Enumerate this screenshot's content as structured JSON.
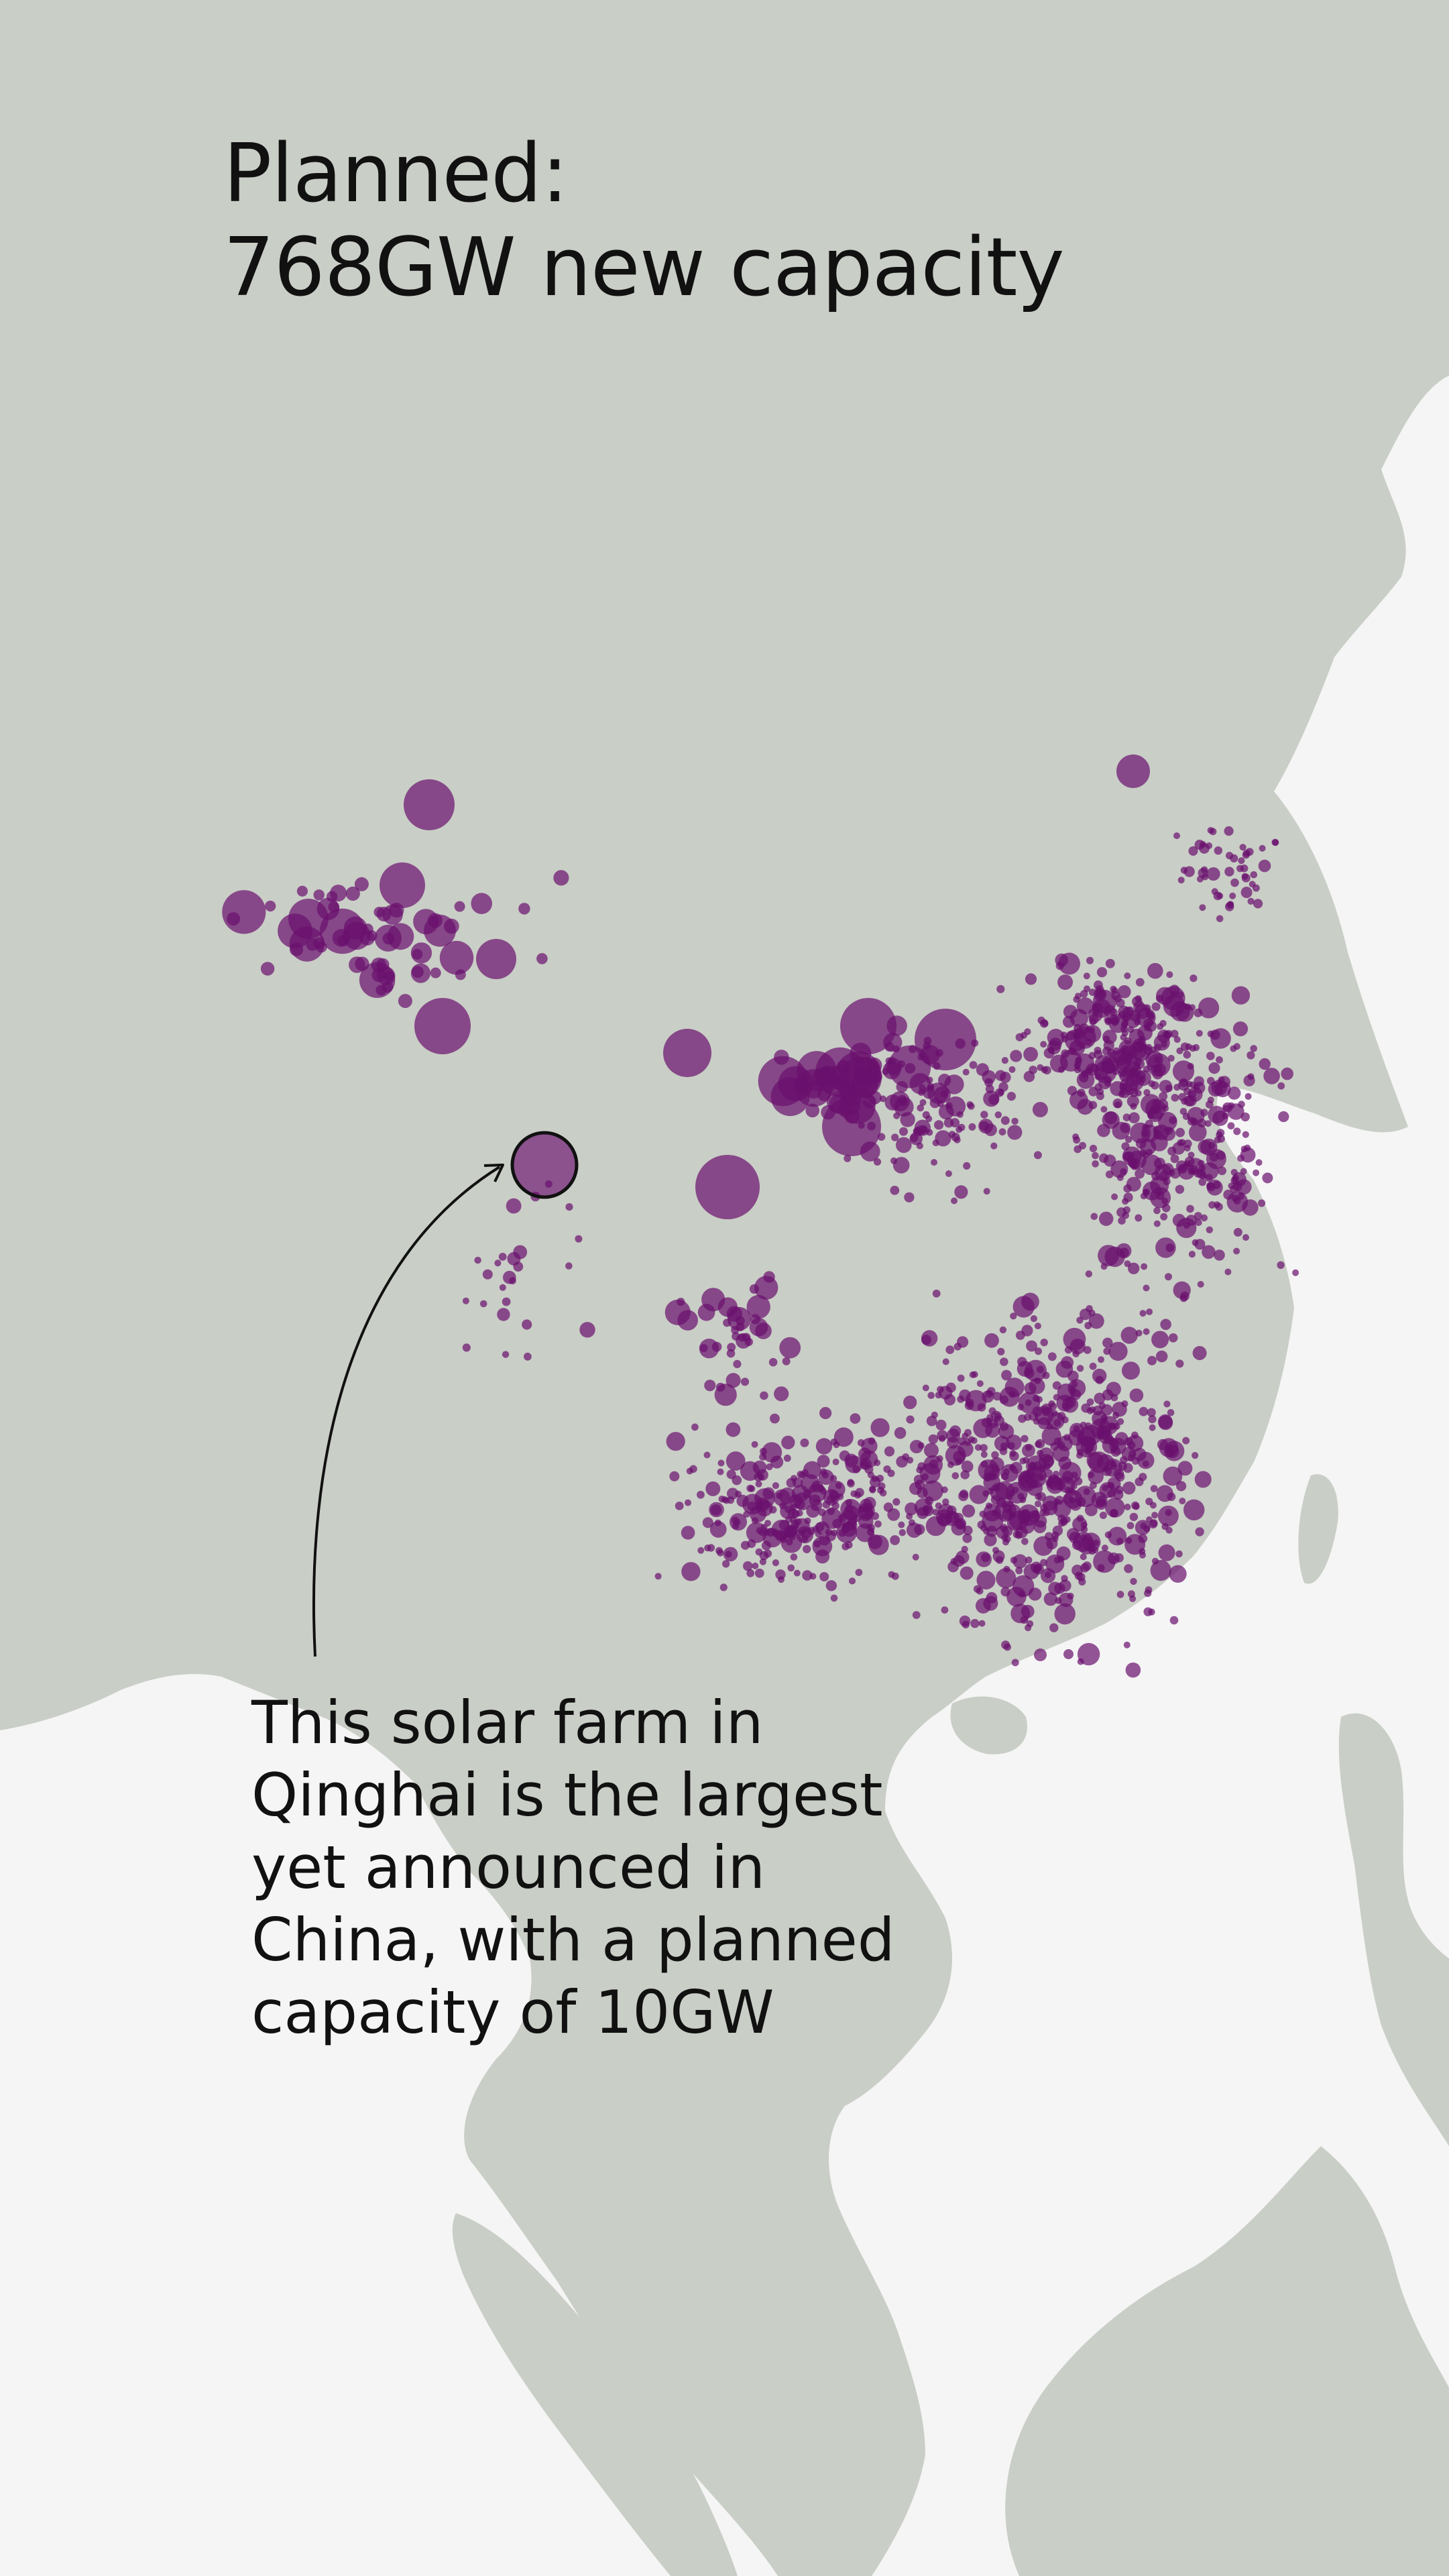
{
  "title": {
    "line1": "Planned:",
    "line2": "768GW new capacity"
  },
  "annotation": {
    "lines": [
      "This solar farm in",
      "Qinghai is the largest",
      "yet announced in",
      "China, with a planned",
      "capacity of 10GW"
    ]
  },
  "colors": {
    "land": "#c9cec6",
    "water": "#f5f5f5",
    "site": "#6a0f6e",
    "highlight_outline": "#111111"
  },
  "highlighted_site": {
    "province": "Qinghai",
    "capacity_gw": 10
  }
}
